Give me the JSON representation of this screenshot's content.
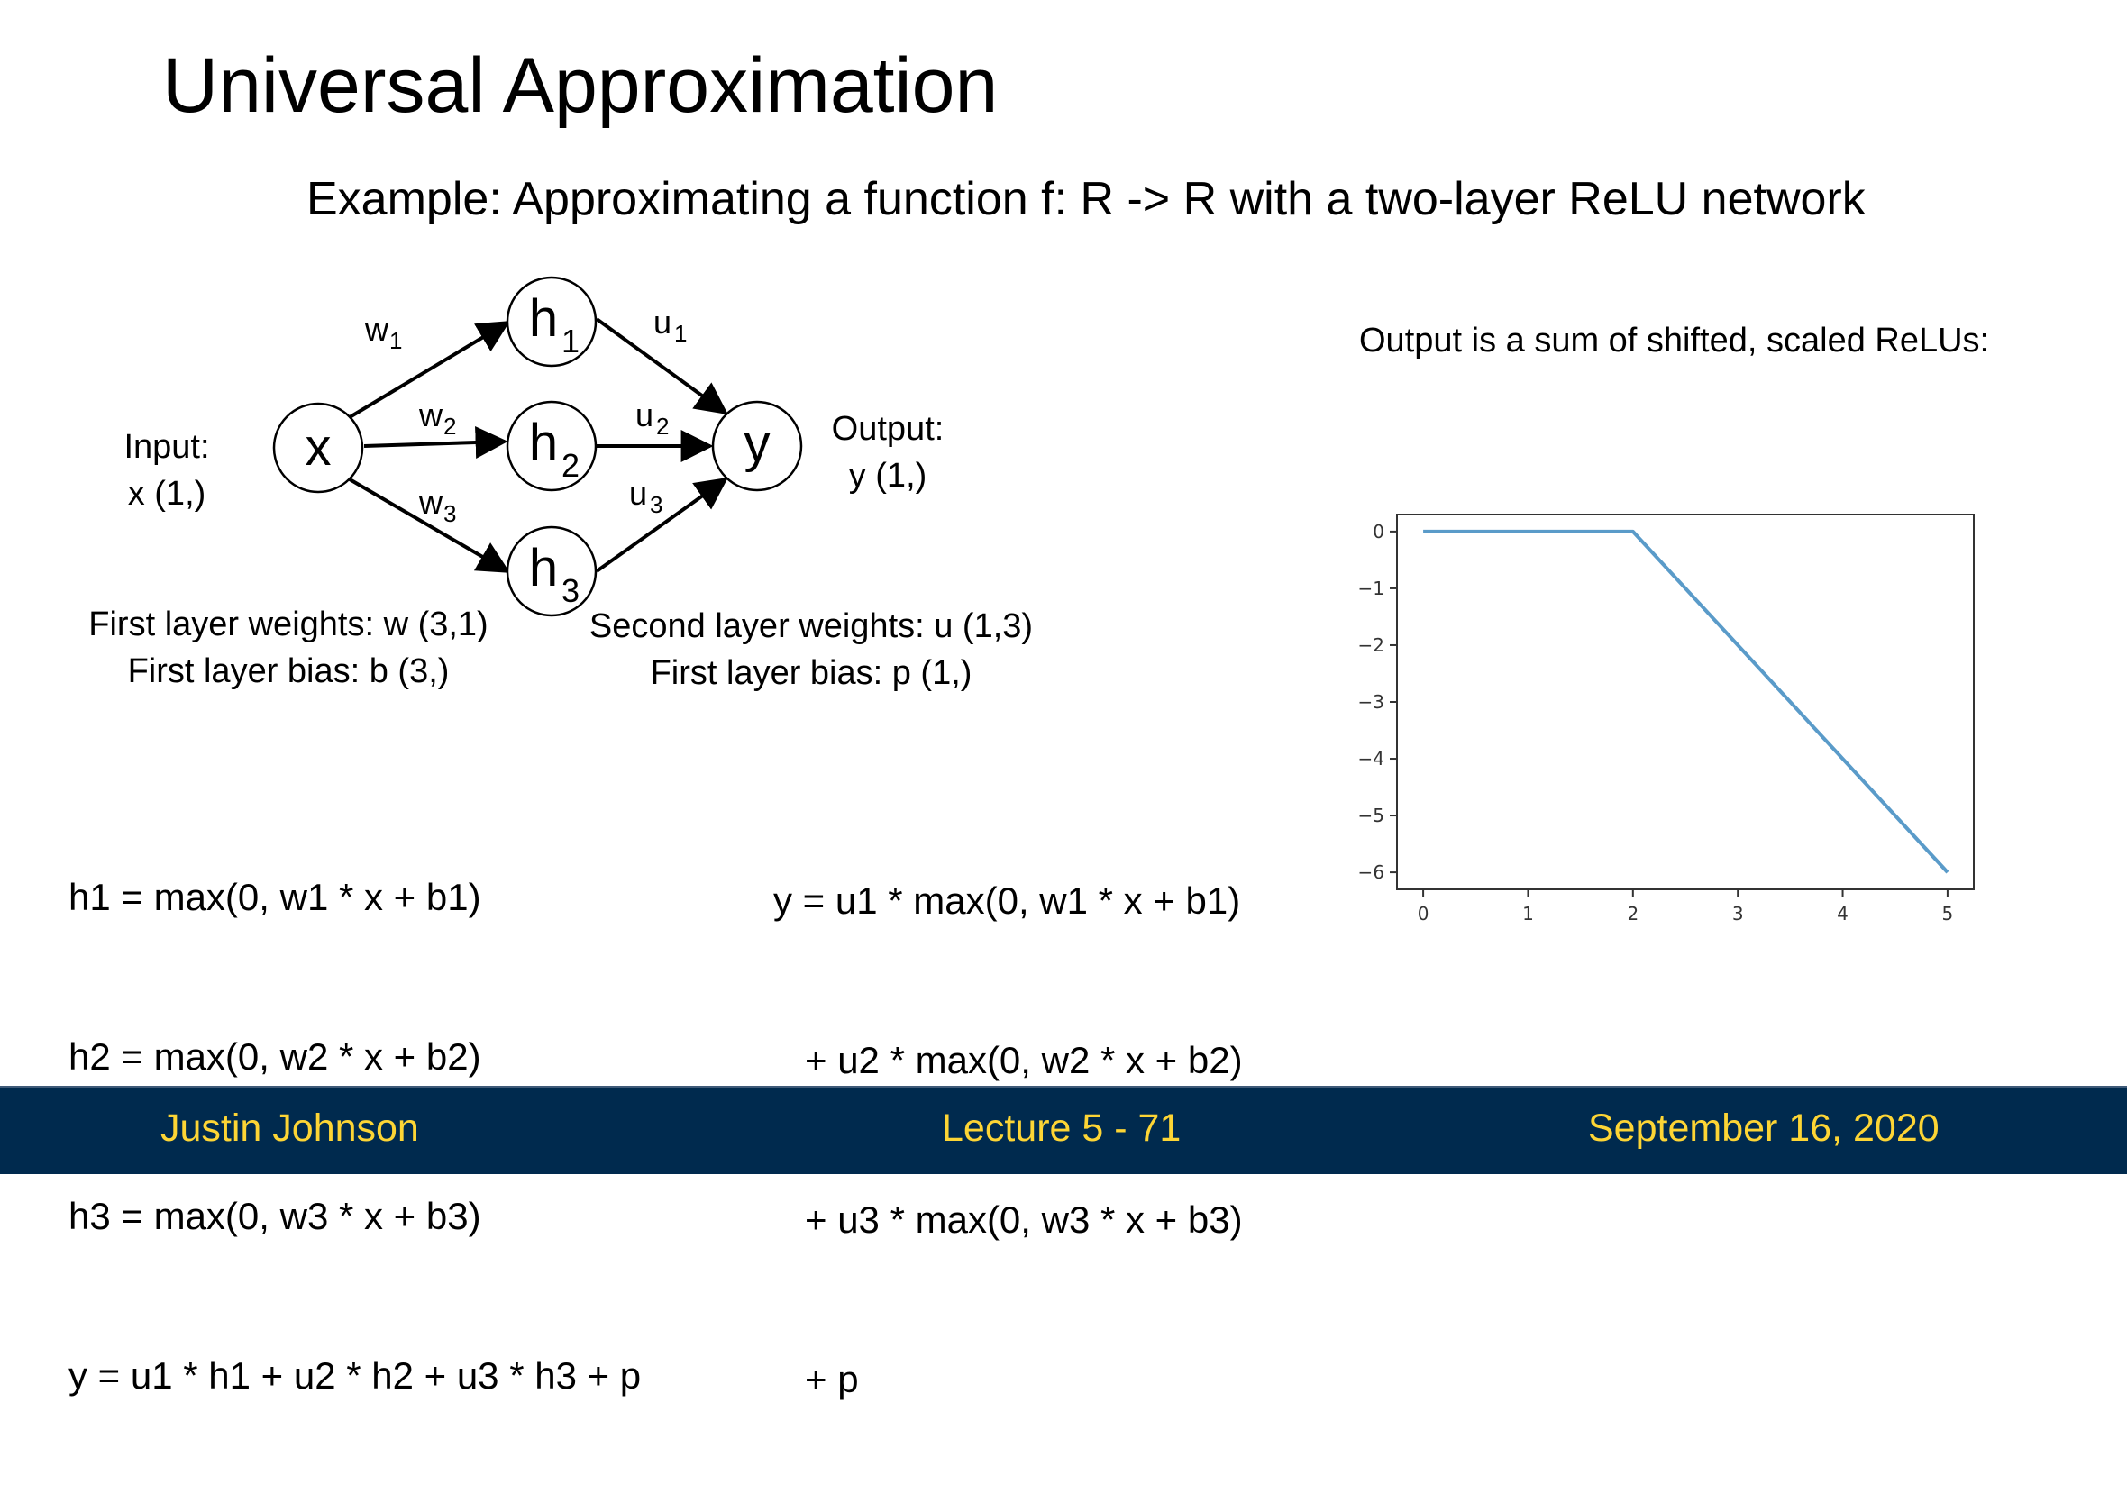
{
  "slide": {
    "title": "Universal Approximation",
    "subtitle": "Example: Approximating a function f: R -> R with a two-layer ReLU network"
  },
  "network": {
    "nodes": {
      "x": "x",
      "h1_base": "h",
      "h1_sub": "1",
      "h2_base": "h",
      "h2_sub": "2",
      "h3_base": "h",
      "h3_sub": "3",
      "y": "y"
    },
    "edges": {
      "w1_base": "w",
      "w1_sub": "1",
      "w2_base": "w",
      "w2_sub": "2",
      "w3_base": "w",
      "w3_sub": "3",
      "u1_base": "u",
      "u1_sub": "1",
      "u2_base": "u",
      "u2_sub": "2",
      "u3_base": "u",
      "u3_sub": "3"
    },
    "input_label": [
      "Input:",
      "x (1,)"
    ],
    "output_label": [
      "Output:",
      "y (1,)"
    ],
    "first_layer": [
      "First layer weights: w (3,1)",
      "First layer bias: b (3,)"
    ],
    "second_layer": [
      "Second layer weights: u (1,3)",
      "First layer bias: p (1,)"
    ]
  },
  "equations_left": [
    "h1 = max(0, w1 * x + b1)",
    "h2 = max(0, w2 * x + b2)",
    "h3 = max(0, w3 * x + b3)",
    "y = u1 * h1 + u2 * h2 + u3 * h3 + p"
  ],
  "equations_right": [
    "y = u1 * max(0, w1 * x + b1)",
    "   + u2 * max(0, w2 * x + b2)",
    "   + u3 * max(0, w3 * x + b3)",
    "   + p"
  ],
  "plot_caption": "Output is a sum of shifted, scaled ReLUs:",
  "chart_data": {
    "type": "line",
    "series": [
      {
        "x": [
          0,
          2,
          5
        ],
        "y": [
          0,
          0,
          -6
        ],
        "color": "#5a9bc9"
      }
    ],
    "xlim": [
      -0.25,
      5.25
    ],
    "ylim": [
      -6.3,
      0.3
    ],
    "xticks": [
      "0",
      "1",
      "2",
      "3",
      "4",
      "5"
    ],
    "yticks": [
      "0",
      "−1",
      "−2",
      "−3",
      "−4",
      "−5",
      "−6"
    ],
    "xtick_values": [
      0,
      1,
      2,
      3,
      4,
      5
    ],
    "ytick_values": [
      0,
      -1,
      -2,
      -3,
      -4,
      -5,
      -6
    ],
    "grid": false
  },
  "footer": {
    "author": "Justin Johnson",
    "lecture": "Lecture 5 - 71",
    "date": "September 16, 2020"
  },
  "colors": {
    "footer_bg": "#002a4e",
    "footer_text": "#fdd535",
    "line": "#5a9bc9"
  }
}
